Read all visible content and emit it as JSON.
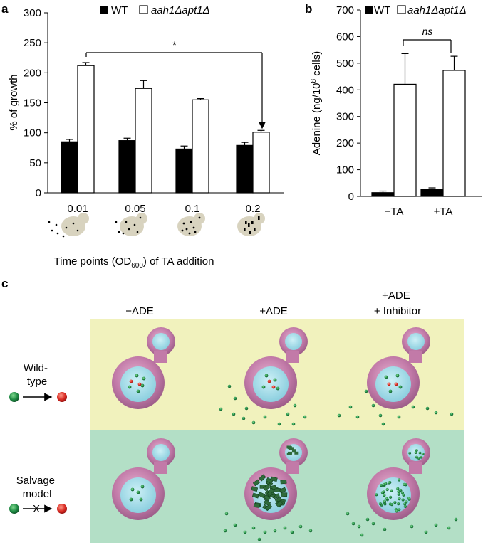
{
  "panel_labels": {
    "a": "a",
    "b": "b",
    "c": "c"
  },
  "legend": {
    "wt": "WT",
    "mutant": "aah1Δapt1Δ"
  },
  "colors": {
    "wt_bar": "#000000",
    "mutant_bar": "#ffffff",
    "yellow_panel": "#f1f2bd",
    "green_panel": "#b3dfc6",
    "cell_body": "#c27aa8",
    "nucleus": "#9fdbe7",
    "green_dot": "#1a7a3c",
    "red_dot": "#d32626",
    "icon_cell": "#d8d3bf"
  },
  "chart_data": [
    {
      "type": "bar",
      "title": "",
      "xlabel_prefix": "Time points (OD",
      "xlabel_sub": "600",
      "xlabel_suffix": ") of TA addition",
      "ylabel": "% of growth",
      "categories": [
        "0.01",
        "0.05",
        "0.1",
        "0.2"
      ],
      "series": [
        {
          "name": "WT",
          "values": [
            85,
            87,
            73,
            79
          ],
          "errors": [
            4,
            4,
            5,
            5
          ]
        },
        {
          "name": "aah1Δapt1Δ",
          "values": [
            212,
            174,
            155,
            101
          ],
          "errors": [
            5,
            13,
            2,
            3
          ]
        }
      ],
      "ylim": [
        0,
        300
      ],
      "yticks": [
        "0",
        "50",
        "100",
        "150",
        "200",
        "250",
        "300"
      ],
      "annotation": "*",
      "grid": false,
      "legend_position": "top"
    },
    {
      "type": "bar",
      "title": "",
      "xlabel": "",
      "ylabel_prefix": "Adenine (ng/10",
      "ylabel_sup": "8",
      "ylabel_suffix": " cells)",
      "categories": [
        "−TA",
        "+TA"
      ],
      "series": [
        {
          "name": "WT",
          "values": [
            14,
            27
          ],
          "errors": [
            6,
            5
          ]
        },
        {
          "name": "aah1Δapt1Δ",
          "values": [
            421,
            473
          ],
          "errors": [
            115,
            53
          ]
        }
      ],
      "ylim": [
        0,
        700
      ],
      "yticks": [
        "0",
        "100",
        "200",
        "300",
        "400",
        "500",
        "600",
        "700"
      ],
      "annotation": "ns",
      "grid": false,
      "legend_position": "top"
    }
  ],
  "panel_c": {
    "columns": [
      "−ADE",
      "+ADE",
      "+ADE\n+ Inhibitor"
    ],
    "rows": [
      {
        "label": "Wild-\ntype"
      },
      {
        "label": "Salvage\nmodel",
        "blocked_mark": "X"
      }
    ]
  }
}
